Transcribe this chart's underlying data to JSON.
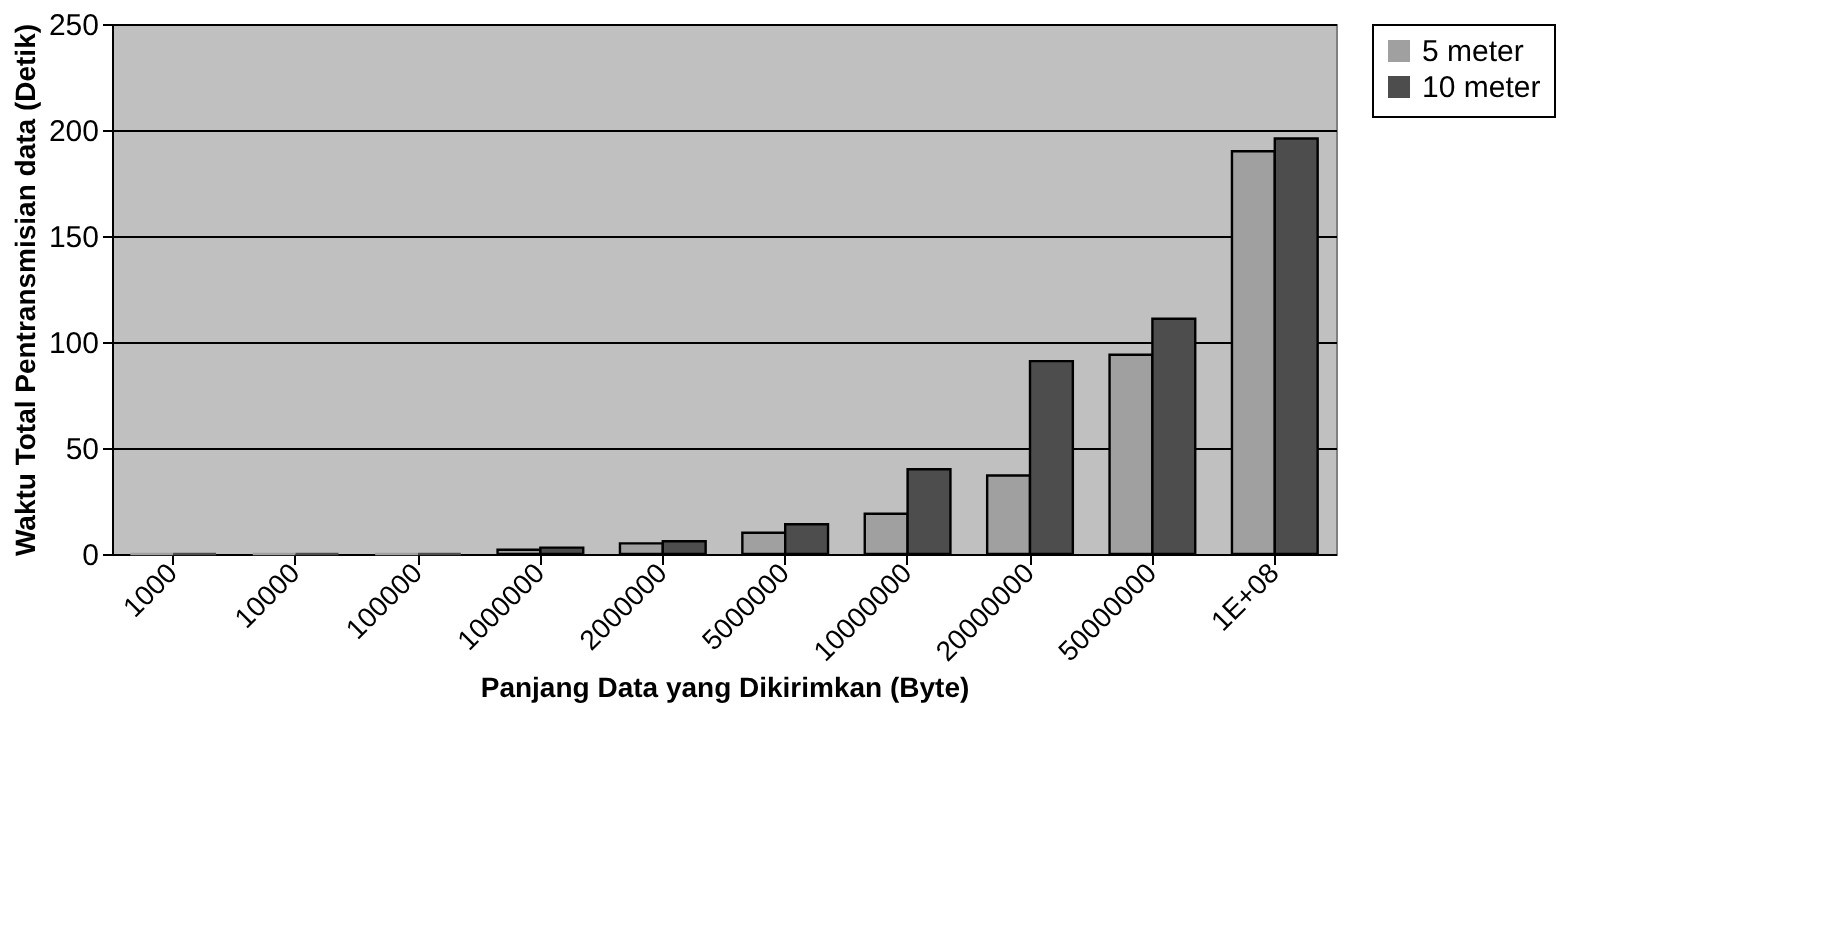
{
  "chart_data": {
    "type": "bar",
    "xlabel": "Panjang Data yang Dikirimkan (Byte)",
    "ylabel": "Waktu Total Pentransmisian data (Detik)",
    "categories": [
      "1000",
      "10000",
      "100000",
      "1000000",
      "2000000",
      "5000000",
      "10000000",
      "20000000",
      "50000000",
      "1E+08"
    ],
    "series": [
      {
        "name": "5 meter",
        "color": "#a0a0a0",
        "values": [
          0,
          0,
          0,
          2,
          5,
          10,
          19,
          37,
          94,
          190
        ]
      },
      {
        "name": "10 meter",
        "color": "#4d4d4d",
        "values": [
          0,
          0,
          0,
          3,
          6,
          14,
          40,
          91,
          111,
          196
        ]
      }
    ],
    "ylim": [
      0,
      250
    ],
    "yticks": [
      0,
      50,
      100,
      150,
      200,
      250
    ],
    "grid": "y",
    "legend": "right"
  }
}
